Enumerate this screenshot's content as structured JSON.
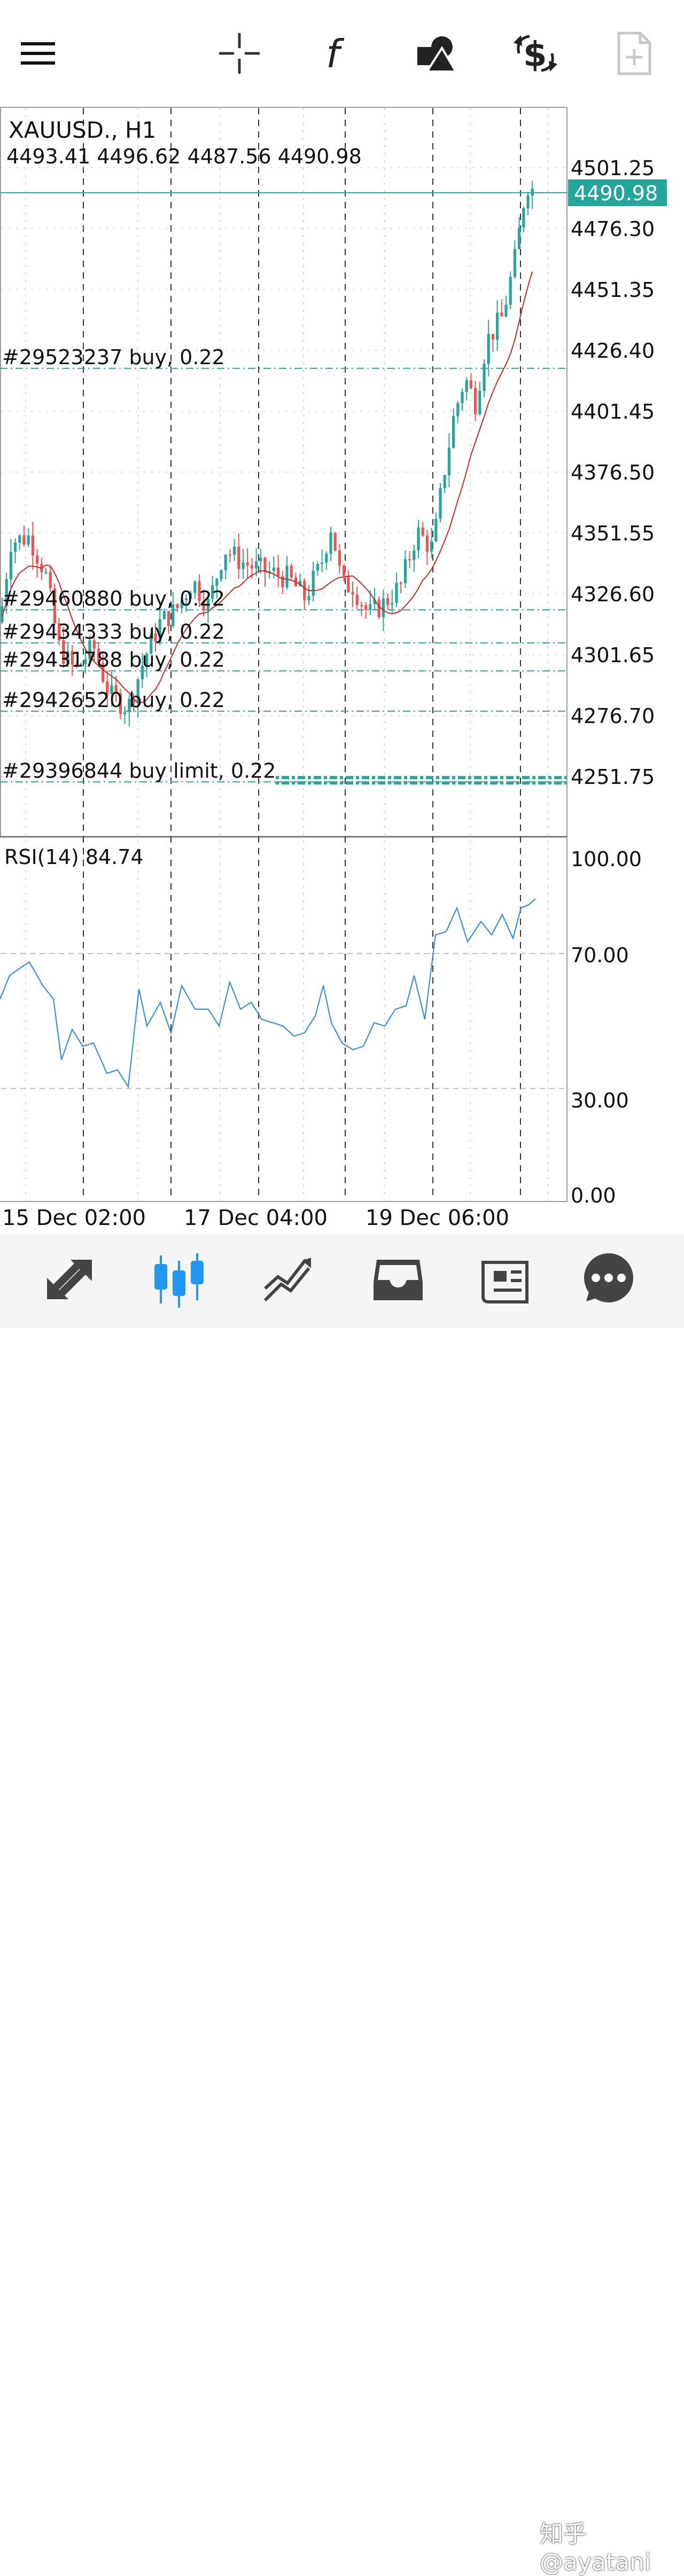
{
  "toolbar": {
    "items": [
      "menu-icon",
      "crosshair-icon",
      "function-icon",
      "shapes-icon",
      "trade-icon",
      "add-document-icon"
    ]
  },
  "chart": {
    "symbol_timeframe": "XAUUSD., H1",
    "ohlc": "4493.41 4496.62 4487.56 4490.98",
    "current_price": "4490.98",
    "price_labels": [
      "4501.25",
      "4476.30",
      "4451.35",
      "4426.40",
      "4401.45",
      "4376.50",
      "4351.55",
      "4326.60",
      "4301.65",
      "4276.70",
      "4251.75"
    ],
    "orders": [
      {
        "label": "#29523237 buy, 0.22",
        "price": 4419.0
      },
      {
        "label": "#29460880 buy, 0.22",
        "price": 4320.0
      },
      {
        "label": "#29434333 buy, 0.22",
        "price": 4306.5
      },
      {
        "label": "#29431788 buy, 0.22",
        "price": 4295.0
      },
      {
        "label": "#29426520 buy, 0.22",
        "price": 4278.5
      },
      {
        "label": "#29396844 buy limit, 0.22",
        "price": 4249.5
      }
    ],
    "colors": {
      "bull": "#26a69a",
      "bear": "#ef5350",
      "ma": "#c62828",
      "rsi": "#3b8fd6",
      "accent": "#26a69a"
    }
  },
  "rsi": {
    "title": "RSI(14) 84.74",
    "levels": [
      "100.00",
      "70.00",
      "30.00",
      "0.00"
    ]
  },
  "time_axis": {
    "labels": [
      "15 Dec 02:00",
      "17 Dec 04:00",
      "19 Dec 06:00"
    ]
  },
  "bottom_nav": {
    "items": [
      "quotes-icon",
      "chart-icon",
      "trade-icon",
      "history-icon",
      "news-icon",
      "messages-icon"
    ]
  },
  "watermark": "知乎 @ayatani"
}
